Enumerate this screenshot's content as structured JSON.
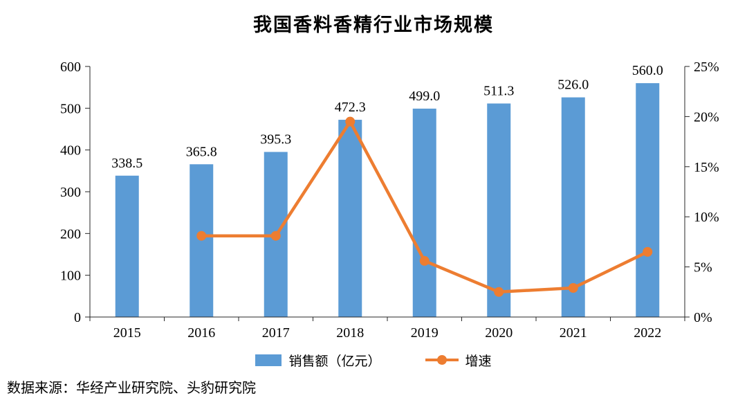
{
  "title": "我国香料香精行业市场规模",
  "source": "数据来源：华经产业研究院、头豹研究院",
  "legend": {
    "bars_label": "销售额（亿元）",
    "line_label": "增速"
  },
  "colors": {
    "bar": "#5B9BD5",
    "line": "#ED7D31",
    "axis": "#262626",
    "text": "#000000"
  },
  "chart_data": {
    "type": "bar",
    "subtype": "bar+line-combo",
    "title": "我国香料香精行业市场规模",
    "categories": [
      "2015",
      "2016",
      "2017",
      "2018",
      "2019",
      "2020",
      "2021",
      "2022"
    ],
    "series": [
      {
        "name": "销售额（亿元）",
        "type": "bar",
        "axis": "left",
        "values": [
          338.5,
          365.8,
          395.3,
          472.3,
          499.0,
          511.3,
          526.0,
          560.0
        ]
      },
      {
        "name": "增速",
        "type": "line",
        "axis": "right",
        "values": [
          null,
          8.1,
          8.1,
          19.5,
          5.6,
          2.5,
          2.9,
          6.5
        ]
      }
    ],
    "bar_labels": [
      "338.5",
      "365.8",
      "395.3",
      "472.3",
      "499.0",
      "511.3",
      "526.0",
      "560.0"
    ],
    "left_axis": {
      "min": 0,
      "max": 600,
      "step": 100
    },
    "right_axis": {
      "min": 0,
      "max": 25,
      "step": 5,
      "format": "percent"
    },
    "grid": false,
    "legend_position": "bottom"
  }
}
